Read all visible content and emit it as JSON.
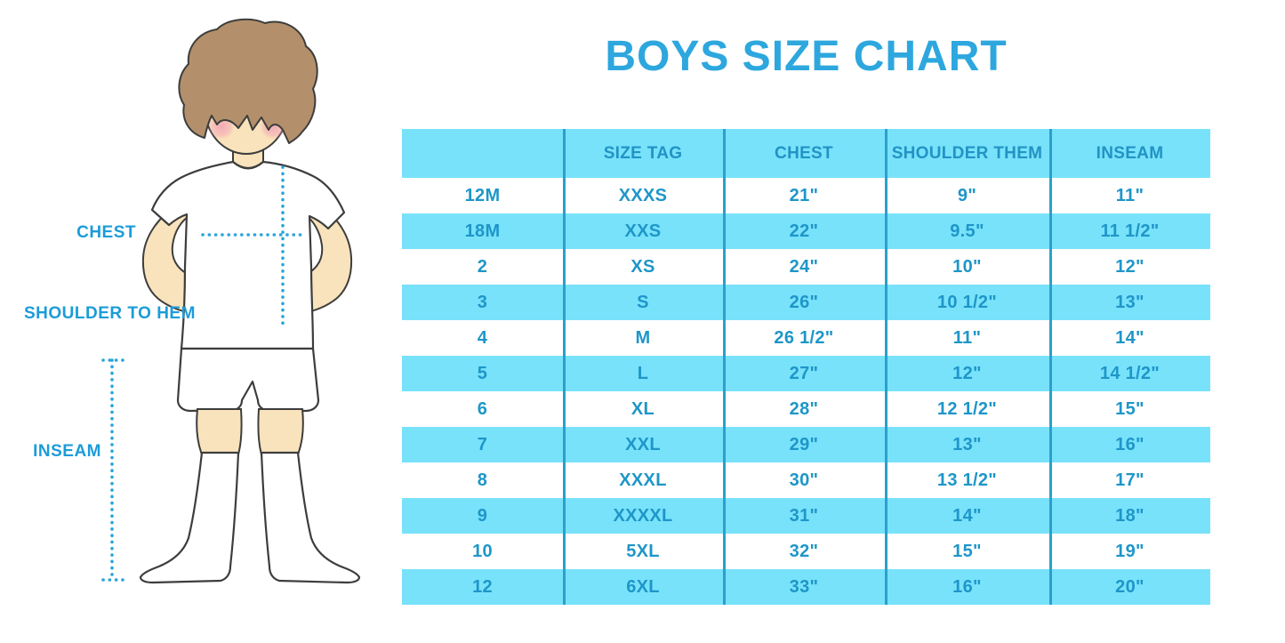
{
  "title": "BOYS SIZE CHART",
  "colors": {
    "title_blue": "#2da7de",
    "label_blue": "#1b9cd8",
    "table_text_blue": "#1e96c8",
    "row_fill_blue": "#78e2fb",
    "separator_blue": "#2ba0cb",
    "dotted_line_blue": "#29a5db",
    "skin": "#f9e3bc",
    "hair": "#b3906b",
    "blush": "#f2a0b5"
  },
  "figure": {
    "illustration": "boy-in-white-tshirt-shorts-and-knee-socks",
    "labels": {
      "chest": "CHEST",
      "shoulder_to_hem": "SHOULDER TO HEM",
      "inseam": "INSEAM"
    }
  },
  "chart_data": {
    "type": "table",
    "title": "BOYS SIZE CHART",
    "columns": [
      "",
      "SIZE TAG",
      "CHEST",
      "SHOULDER THEM",
      "INSEAM"
    ],
    "rows": [
      [
        "12M",
        "XXXS",
        "21\"",
        "9\"",
        "11\""
      ],
      [
        "18M",
        "XXS",
        "22\"",
        "9.5\"",
        "11 1/2\""
      ],
      [
        "2",
        "XS",
        "24\"",
        "10\"",
        "12\""
      ],
      [
        "3",
        "S",
        "26\"",
        "10 1/2\"",
        "13\""
      ],
      [
        "4",
        "M",
        "26 1/2\"",
        "11\"",
        "14\""
      ],
      [
        "5",
        "L",
        "27\"",
        "12\"",
        "14 1/2\""
      ],
      [
        "6",
        "XL",
        "28\"",
        "12 1/2\"",
        "15\""
      ],
      [
        "7",
        "XXL",
        "29\"",
        "13\"",
        "16\""
      ],
      [
        "8",
        "XXXL",
        "30\"",
        "13 1/2\"",
        "17\""
      ],
      [
        "9",
        "XXXXL",
        "31\"",
        "14\"",
        "18\""
      ],
      [
        "10",
        "5XL",
        "32\"",
        "15\"",
        "19\""
      ],
      [
        "12",
        "6XL",
        "33\"",
        "16\"",
        "20\""
      ]
    ],
    "layout": {
      "header_fill": "#78e2fb",
      "alternating_row_fills": [
        "#ffffff",
        "#78e2fb"
      ],
      "column_separators": true,
      "outer_border": false
    }
  }
}
